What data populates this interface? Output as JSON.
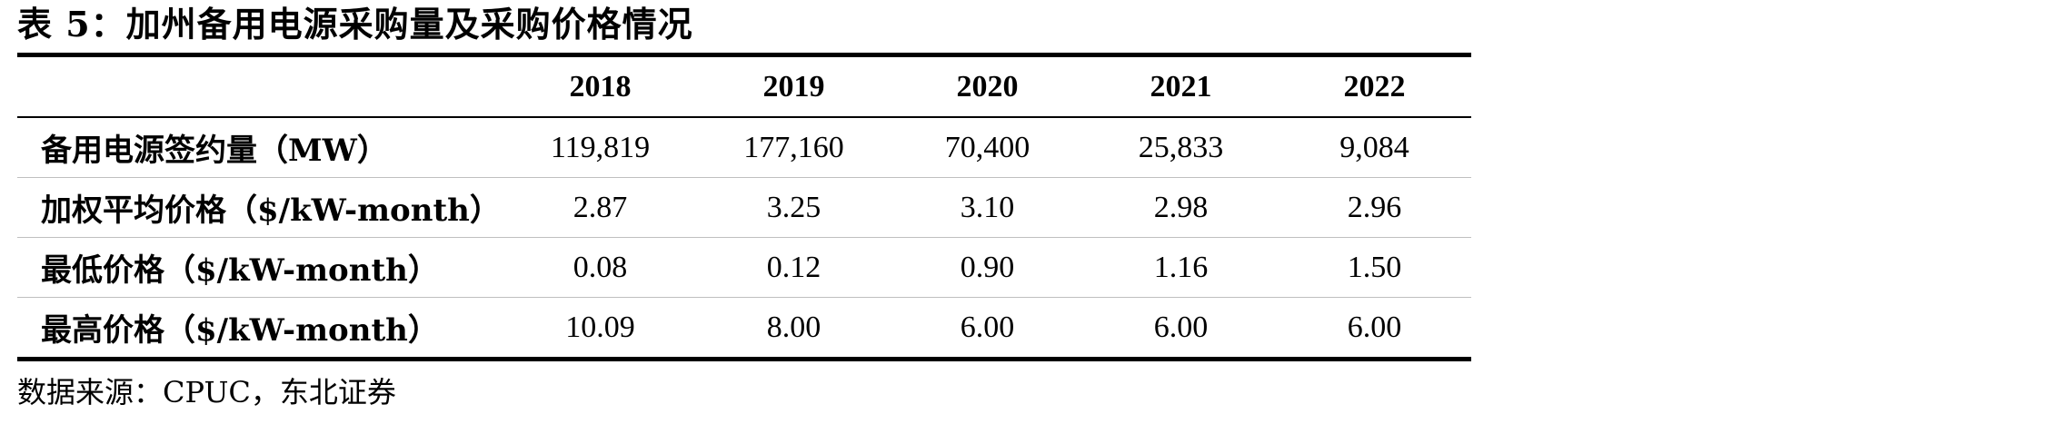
{
  "title": "表 5：加州备用电源采购量及采购价格情况",
  "table": {
    "header": [
      "",
      "2018",
      "2019",
      "2020",
      "2021",
      "2022"
    ],
    "rows": [
      {
        "label": "备用电源签约量（MW）",
        "values": [
          "119,819",
          "177,160",
          "70,400",
          "25,833",
          "9,084"
        ]
      },
      {
        "label": "加权平均价格（$/kW-month）",
        "values": [
          "2.87",
          "3.25",
          "3.10",
          "2.98",
          "2.96"
        ]
      },
      {
        "label": "最低价格（$/kW-month）",
        "values": [
          "0.08",
          "0.12",
          "0.90",
          "1.16",
          "1.50"
        ]
      },
      {
        "label": "最高价格（$/kW-month）",
        "values": [
          "10.09",
          "8.00",
          "6.00",
          "6.00",
          "6.00"
        ]
      }
    ]
  },
  "source": "数据来源：CPUC，东北证券"
}
